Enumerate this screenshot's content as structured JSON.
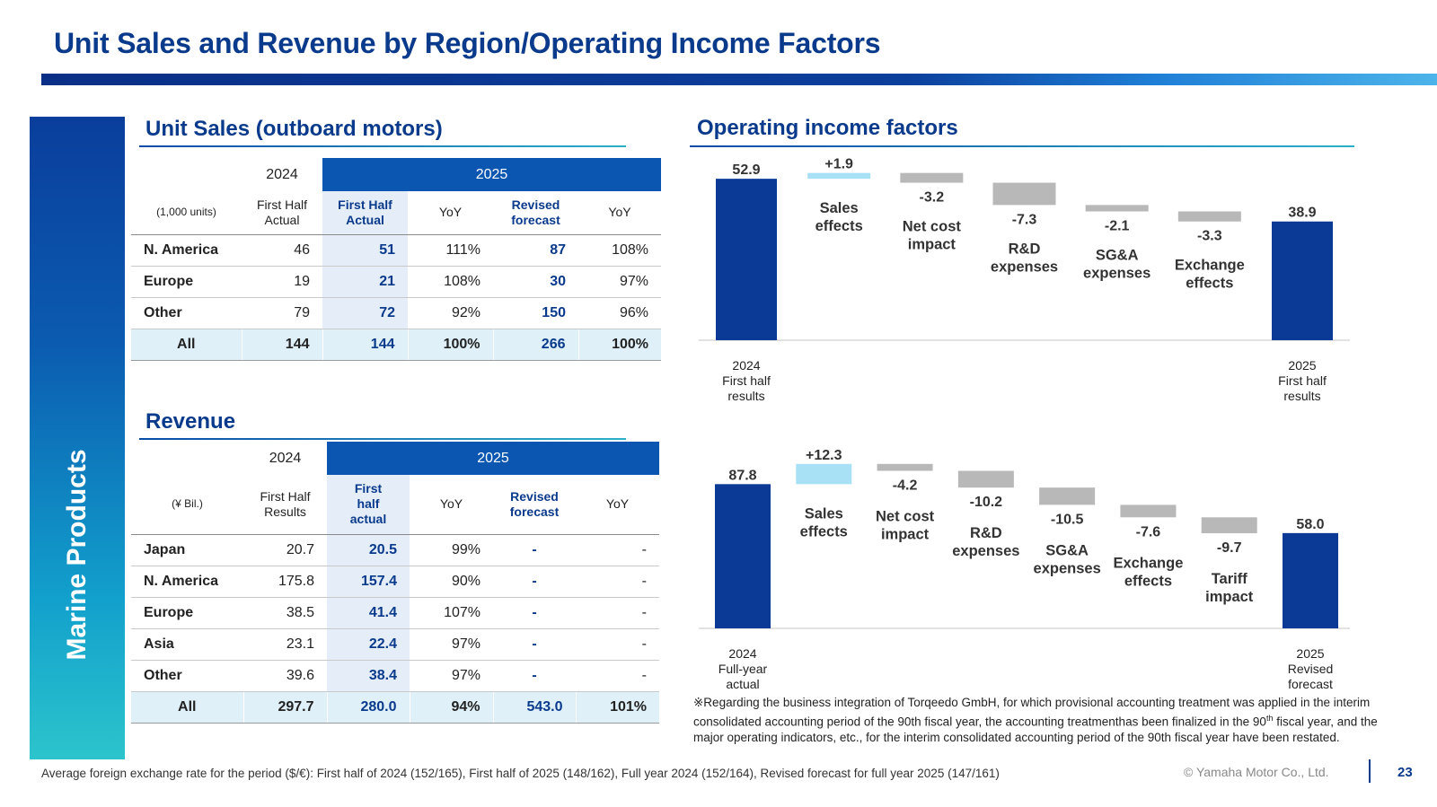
{
  "page": {
    "title": "Unit Sales and Revenue by Region/Operating Income Factors",
    "side_tab": "Marine Products",
    "page_number": "23",
    "copyright": "© Yamaha Motor Co., Ltd.",
    "footnote_fx": "Average foreign exchange rate for the period ($/€): First half of 2024 (152/165), First half of 2025 (148/162), Full year 2024 (152/164), Revised forecast for full year 2025 (147/161)",
    "note_part1": "※Regarding the business integration of Torqeedo GmbH, for which provisional accounting treatment was applied in the interim consolidated accounting period of the 90th fiscal year, the accounting treatmenthas been finalized in the 90",
    "note_sup": "th",
    "note_part2": " fiscal year, and the major operating indicators, etc., for the interim consolidated accounting period of the 90th fiscal year have been restated.",
    "colors": {
      "brand_blue": "#0a3a8c",
      "bar_total": "#0a3a96",
      "bar_positive": "#a8e0f6",
      "bar_negative": "#b8b8b8"
    }
  },
  "unit_sales": {
    "title": "Unit Sales (outboard motors)",
    "year_2024": "2024",
    "year_2025": "2025",
    "unit": "(1,000 units)",
    "col_2024": "First Half Actual",
    "col_2025_actual": "First Half Actual",
    "col_yoy1": "YoY",
    "col_revised": "Revised forecast",
    "col_yoy2": "YoY",
    "rows": [
      {
        "region": "N. America",
        "h1_2024": "46",
        "h1_2025": "51",
        "yoy": "111%",
        "forecast": "87",
        "yoy_forecast": "108%"
      },
      {
        "region": "Europe",
        "h1_2024": "19",
        "h1_2025": "21",
        "yoy": "108%",
        "forecast": "30",
        "yoy_forecast": "97%"
      },
      {
        "region": "Other",
        "h1_2024": "79",
        "h1_2025": "72",
        "yoy": "92%",
        "forecast": "150",
        "yoy_forecast": "96%"
      }
    ],
    "total": {
      "region": "All",
      "h1_2024": "144",
      "h1_2025": "144",
      "yoy": "100%",
      "forecast": "266",
      "yoy_forecast": "100%"
    }
  },
  "revenue": {
    "title": "Revenue",
    "year_2024": "2024",
    "year_2025": "2025",
    "unit": "(¥ Bil.)",
    "col_2024": "First Half Results",
    "col_2025_actual": "First half actual",
    "col_yoy1": "YoY",
    "col_revised": "Revised forecast",
    "col_yoy2": "YoY",
    "rows": [
      {
        "region": "Japan",
        "h1_2024": "20.7",
        "h1_2025": "20.5",
        "yoy": "99%",
        "forecast": "-",
        "yoy_forecast": "-"
      },
      {
        "region": "N. America",
        "h1_2024": "175.8",
        "h1_2025": "157.4",
        "yoy": "90%",
        "forecast": "-",
        "yoy_forecast": "-"
      },
      {
        "region": "Europe",
        "h1_2024": "38.5",
        "h1_2025": "41.4",
        "yoy": "107%",
        "forecast": "-",
        "yoy_forecast": "-"
      },
      {
        "region": "Asia",
        "h1_2024": "23.1",
        "h1_2025": "22.4",
        "yoy": "97%",
        "forecast": "-",
        "yoy_forecast": "-"
      },
      {
        "region": "Other",
        "h1_2024": "39.6",
        "h1_2025": "38.4",
        "yoy": "97%",
        "forecast": "-",
        "yoy_forecast": "-"
      }
    ],
    "total": {
      "region": "All",
      "h1_2024": "297.7",
      "h1_2025": "280.0",
      "yoy": "94%",
      "forecast": "543.0",
      "yoy_forecast": "101%"
    }
  },
  "operating_income": {
    "title": "Operating income factors"
  },
  "chart_data": [
    {
      "type": "bar",
      "subtype": "waterfall",
      "start": {
        "label": "2024 First half results",
        "value": 52.9,
        "value_label": "52.9"
      },
      "factors": [
        {
          "label": "Sales effects",
          "value": 1.9,
          "value_label": "+1.9"
        },
        {
          "label": "Net cost impact",
          "value": -3.2,
          "value_label": "-3.2"
        },
        {
          "label": "R&D expenses",
          "value": -7.3,
          "value_label": "-7.3"
        },
        {
          "label": "SG&A expenses",
          "value": -2.1,
          "value_label": "-2.1"
        },
        {
          "label": "Exchange effects",
          "value": -3.3,
          "value_label": "-3.3"
        }
      ],
      "end": {
        "label": "2025 First half results",
        "value": 38.9,
        "value_label": "38.9"
      }
    },
    {
      "type": "bar",
      "subtype": "waterfall",
      "start": {
        "label": "2024 Full-year actual",
        "value": 87.8,
        "value_label": "87.8"
      },
      "factors": [
        {
          "label": "Sales effects",
          "value": 12.3,
          "value_label": "+12.3"
        },
        {
          "label": "Net cost impact",
          "value": -4.2,
          "value_label": "-4.2"
        },
        {
          "label": "R&D expenses",
          "value": -10.2,
          "value_label": "-10.2"
        },
        {
          "label": "SG&A expenses",
          "value": -10.5,
          "value_label": "-10.5"
        },
        {
          "label": "Exchange effects",
          "value": -7.6,
          "value_label": "-7.6"
        },
        {
          "label": "Tariff impact",
          "value": -9.7,
          "value_label": "-9.7"
        }
      ],
      "end": {
        "label": "2025 Revised forecast",
        "value": 58.0,
        "value_label": "58.0"
      }
    }
  ]
}
